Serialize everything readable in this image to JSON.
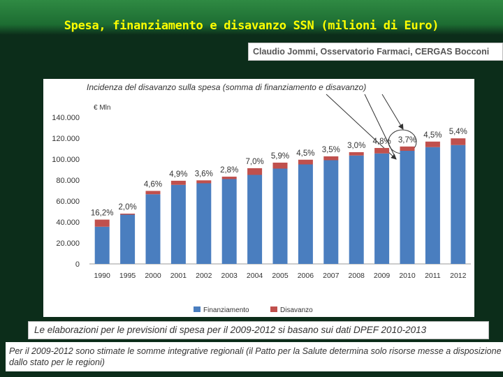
{
  "slide": {
    "title": "Spesa, finanziamento e disavanzo SSN (milioni di Euro)",
    "author": "Claudio Jommi, Osservatorio Farmaci, CERGAS Bocconi",
    "note_1": "Le elaborazioni per le previsioni di spesa per il 2009-2012 si basano sui dati DPEF 2010-2013",
    "note_2": "Per il 2009-2012 sono stimate le somme integrative regionali (il Patto per la Salute determina solo risorse messe a disposizione dallo stato per le regioni)"
  },
  "chart_data": {
    "type": "bar",
    "stacked": true,
    "annotation": "Incidenza del disavanzo sulla spesa (somma di finanziamento e disavanzo)",
    "unit_label": "€ Mln",
    "categories": [
      "1990",
      "1995",
      "2000",
      "2001",
      "2002",
      "2003",
      "2004",
      "2005",
      "2006",
      "2007",
      "2008",
      "2009",
      "2010",
      "2011",
      "2012"
    ],
    "series": [
      {
        "name": "Finanziamento",
        "color": "#4a7ebf",
        "values": [
          35500,
          47000,
          66500,
          75500,
          77000,
          81000,
          85000,
          91000,
          95000,
          99000,
          103500,
          105500,
          108000,
          111500,
          113500
        ]
      },
      {
        "name": "Disavanzo",
        "color": "#c0504d",
        "values": [
          6800,
          1000,
          3200,
          3900,
          2800,
          2300,
          6400,
          5700,
          4500,
          3700,
          3200,
          5200,
          4100,
          5300,
          6400
        ]
      }
    ],
    "pct_labels": [
      "16,2%",
      "2,0%",
      "4,6%",
      "4,9%",
      "3,6%",
      "2,8%",
      "7,0%",
      "5,9%",
      "4,5%",
      "3,5%",
      "3,0%",
      "4,8%",
      "3,7%",
      "4,5%",
      "5,4%"
    ],
    "y_ticks": [
      "0",
      "20.000",
      "40.000",
      "60.000",
      "80.000",
      "100.000",
      "120.000",
      "140.000"
    ],
    "ylim": [
      0,
      140000
    ],
    "legend_position": "bottom"
  }
}
